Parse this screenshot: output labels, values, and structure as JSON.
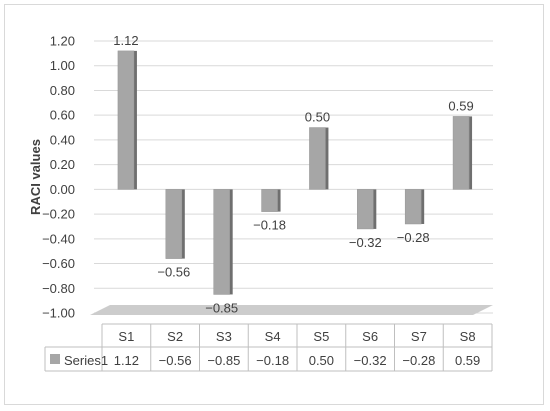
{
  "chart_data": {
    "type": "bar",
    "categories": [
      "S1",
      "S2",
      "S3",
      "S4",
      "S5",
      "S6",
      "S7",
      "S8"
    ],
    "series": [
      {
        "name": "Series1",
        "values": [
          1.12,
          -0.56,
          -0.85,
          -0.18,
          0.5,
          -0.32,
          -0.28,
          0.59
        ],
        "labels": [
          "1.12",
          "−0.56",
          "−0.85",
          "−0.18",
          "0.50",
          "−0.32",
          "−0.28",
          "0.59"
        ],
        "color": "#a6a6a6"
      }
    ],
    "ylabel": "RACI values",
    "ylim": [
      -1.0,
      1.2
    ],
    "yticks": [
      "1.20",
      "1.00",
      "0.80",
      "0.60",
      "0.40",
      "0.20",
      "0.00",
      "−0.20",
      "−0.40",
      "−0.60",
      "−0.80",
      "−1.00"
    ],
    "grid": true,
    "data_table": true,
    "legend": "in data table"
  }
}
